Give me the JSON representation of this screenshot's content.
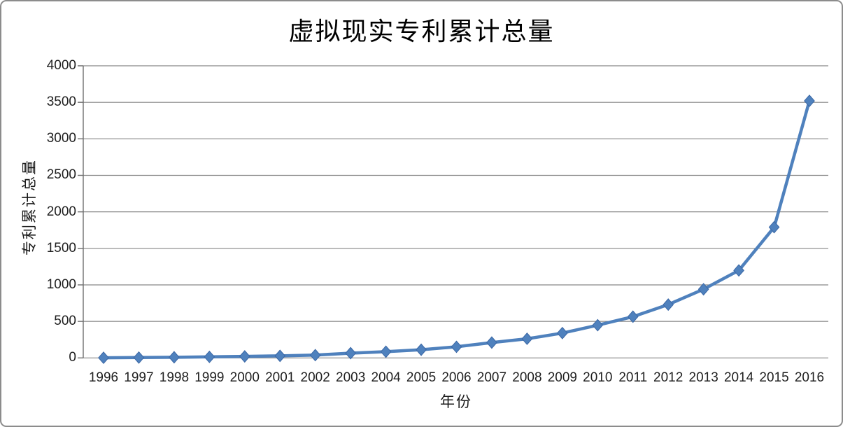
{
  "frame": {
    "border_color": "#8c8c8c",
    "background_color": "#ffffff"
  },
  "chart_data": {
    "type": "line",
    "title": "虚拟现实专利累计总量",
    "xlabel": "年份",
    "ylabel": "专利累计总量",
    "x": [
      1996,
      1997,
      1998,
      1999,
      2000,
      2001,
      2002,
      2003,
      2004,
      2005,
      2006,
      2007,
      2008,
      2009,
      2010,
      2011,
      2012,
      2013,
      2014,
      2015,
      2016
    ],
    "series": [
      {
        "name": "专利累计总量",
        "values": [
          2,
          5,
          9,
          14,
          21,
          28,
          38,
          65,
          85,
          112,
          152,
          210,
          262,
          340,
          448,
          565,
          730,
          940,
          1198,
          1790,
          3520
        ]
      }
    ],
    "ylim": [
      0,
      4000
    ],
    "yticks": [
      0,
      500,
      1000,
      1500,
      2000,
      2500,
      3000,
      3500,
      4000
    ],
    "grid": true,
    "legend_position": "none",
    "marker": "diamond",
    "colors": {
      "line": "#4f81bd",
      "marker_fill": "#4f81bd",
      "marker_stroke": "#3a67a5",
      "gridline": "#868686",
      "axis": "#6e6e6e",
      "tick_text": "#1f1f1f",
      "title_text": "#000000"
    }
  }
}
